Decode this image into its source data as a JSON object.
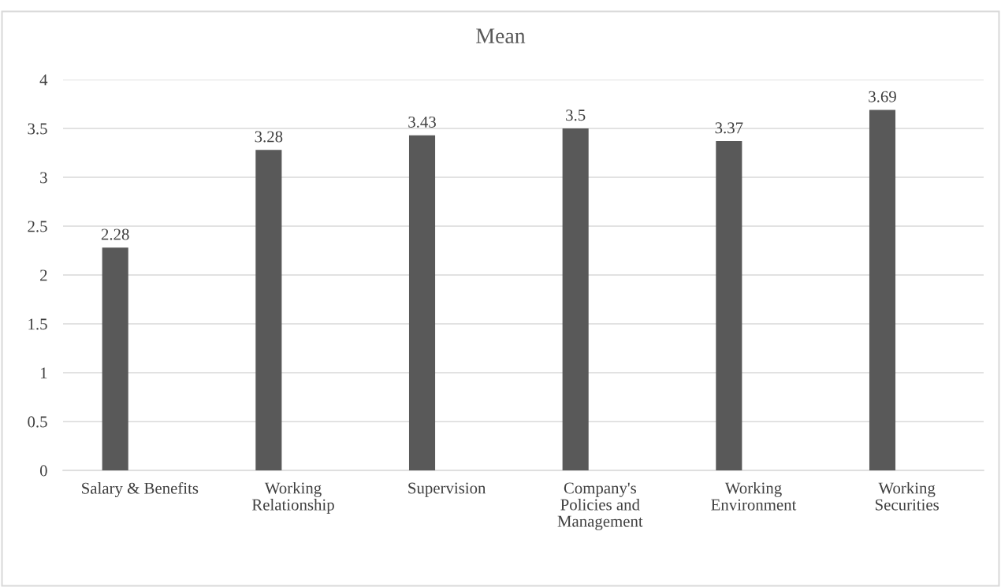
{
  "chart_data": {
    "type": "bar",
    "title": "Mean",
    "categories": [
      "Salary & Benefits",
      "Working Relationship",
      "Supervision",
      "Company's Policies and Management",
      "Working Environment",
      "Working Securities"
    ],
    "values": [
      2.28,
      3.28,
      3.43,
      3.5,
      3.37,
      3.69
    ],
    "color": "#595959",
    "ylim": [
      0,
      4
    ],
    "yticks": [
      0,
      0.5,
      1,
      1.5,
      2,
      2.5,
      3,
      3.5,
      4
    ],
    "grid": "y",
    "data_labels": true
  }
}
